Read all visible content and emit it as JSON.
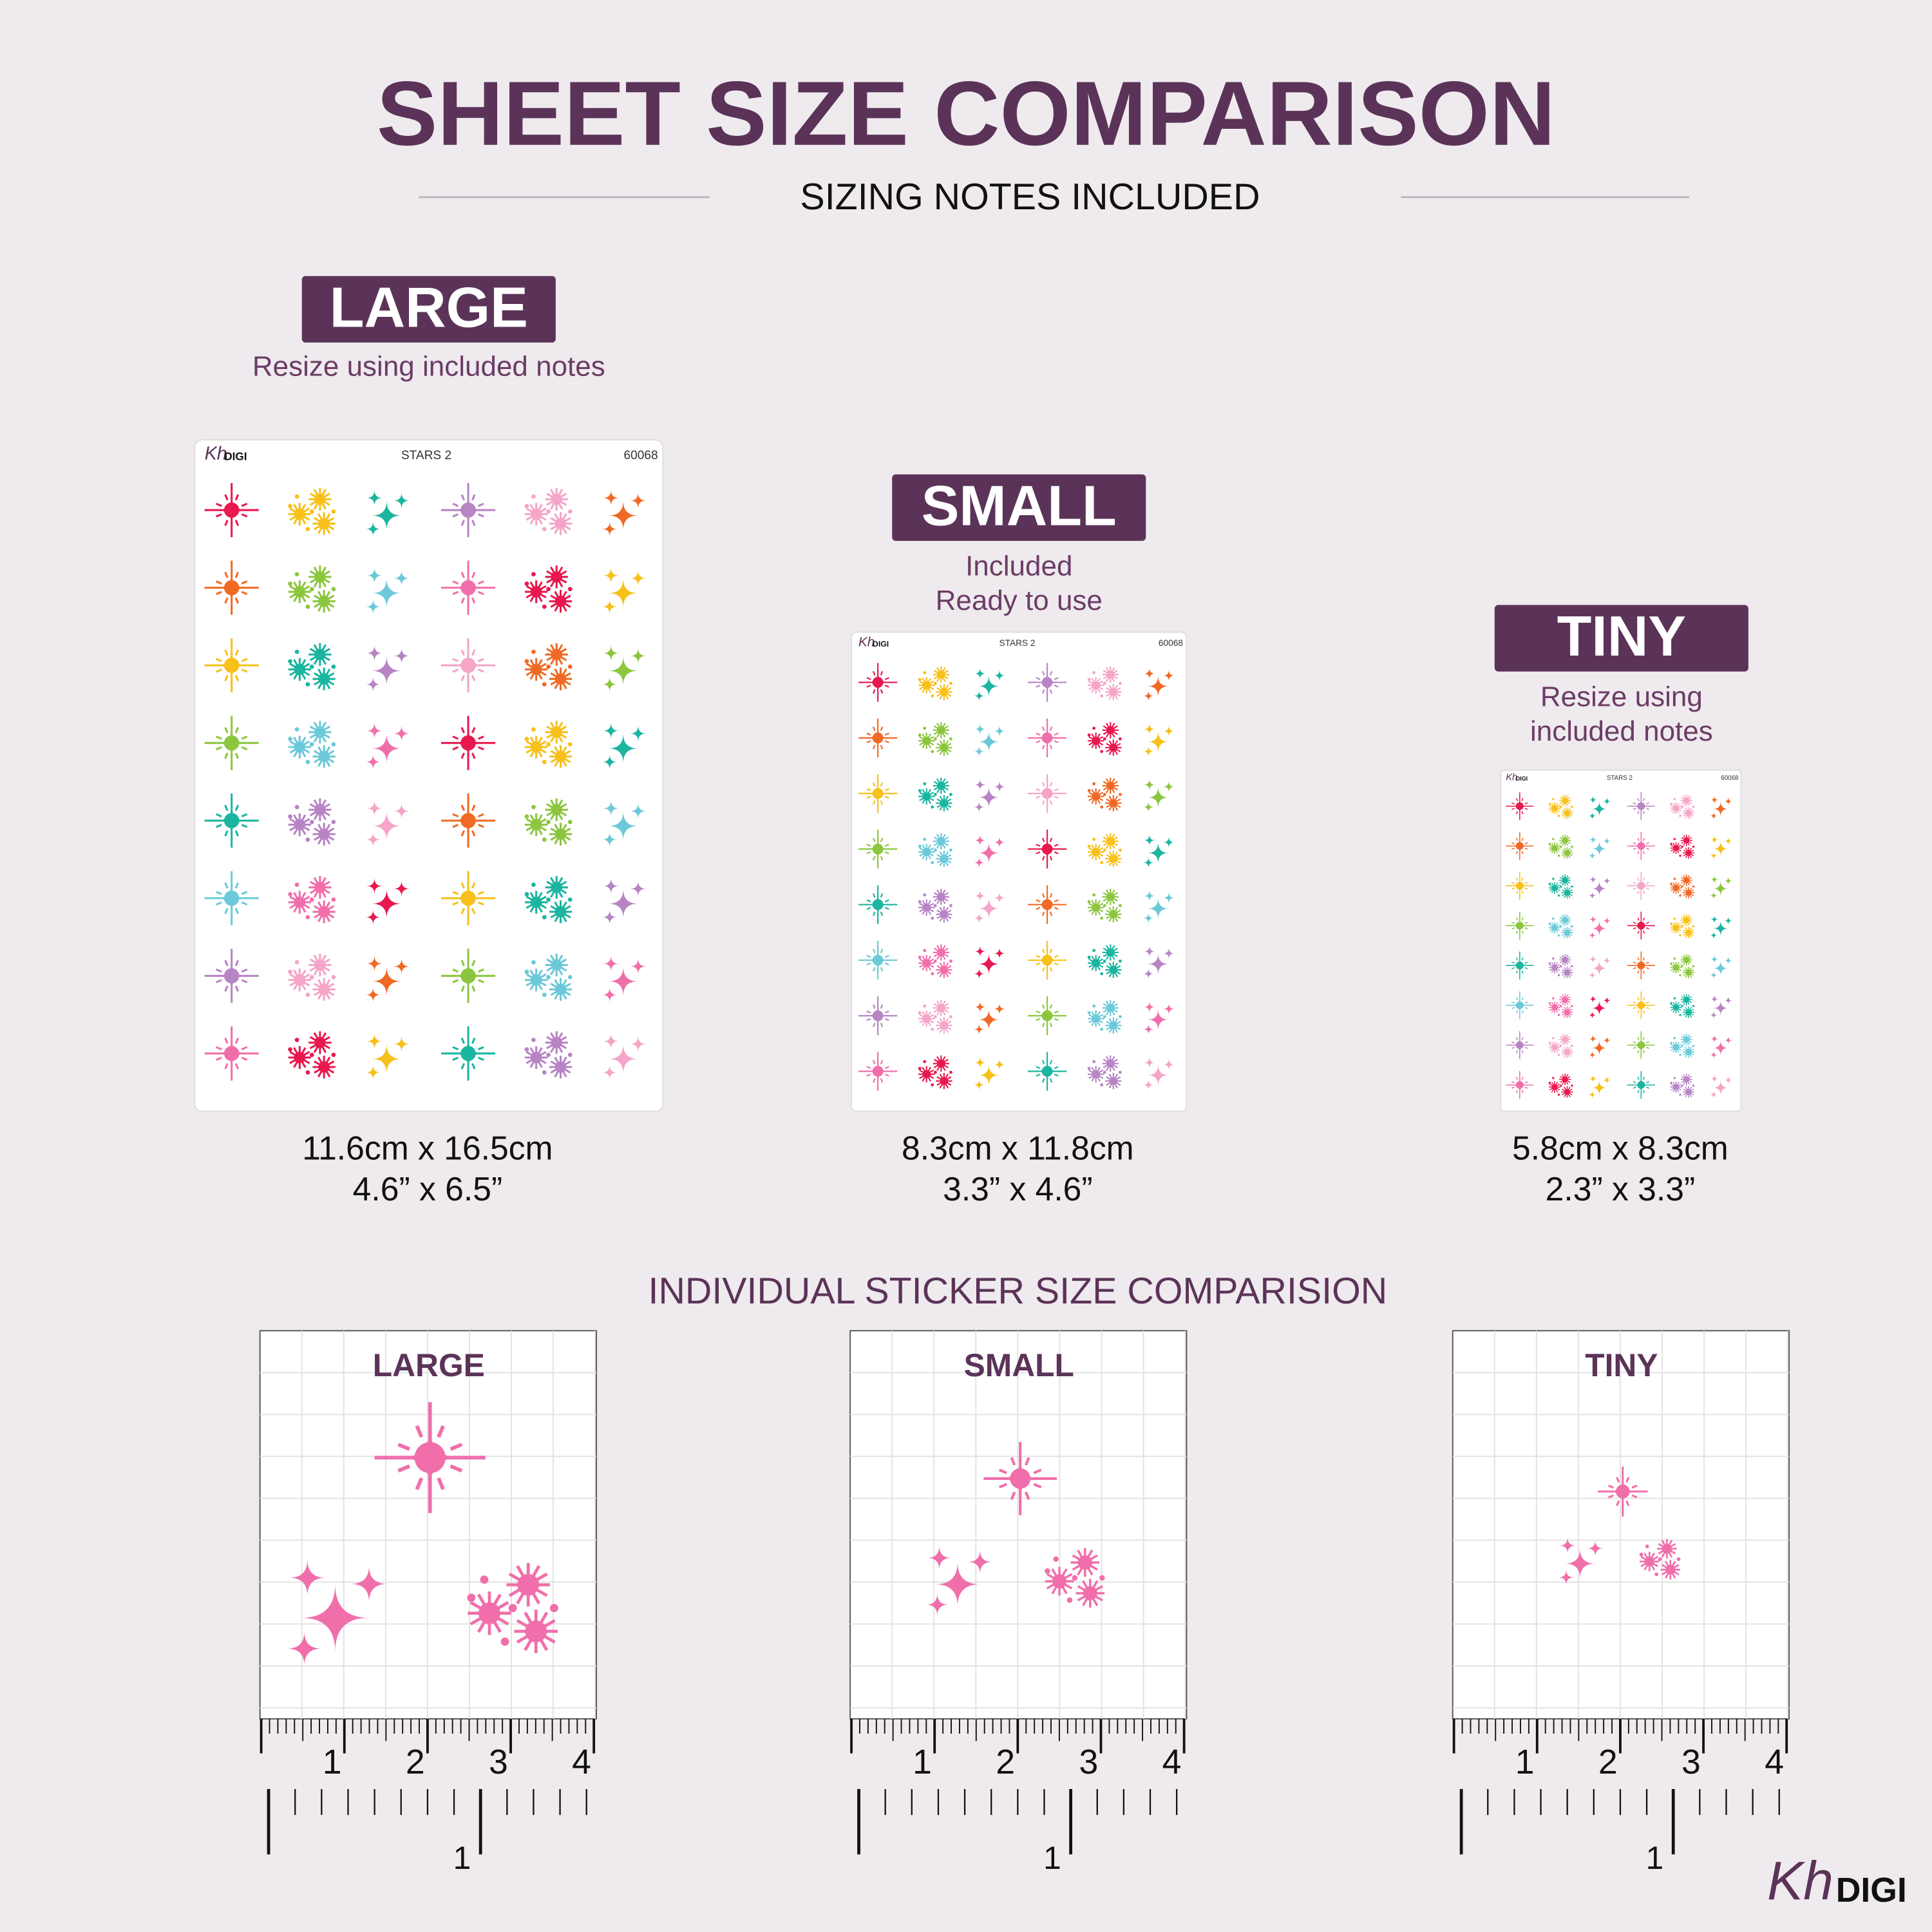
{
  "header": {
    "title": "SHEET SIZE COMPARISON",
    "subtitle": "SIZING NOTES INCLUDED"
  },
  "sheets": [
    {
      "label": "LARGE",
      "note": [
        "Resize using included notes"
      ],
      "size_cm": "11.6cm x 16.5cm",
      "size_in": "4.6” x 6.5”"
    },
    {
      "label": "SMALL",
      "note": [
        "Included",
        "Ready to use"
      ],
      "size_cm": "8.3cm x 11.8cm",
      "size_in": "3.3” x 4.6”"
    },
    {
      "label": "TINY",
      "note": [
        "Resize using",
        "included notes"
      ],
      "size_cm": "5.8cm x 8.3cm",
      "size_in": "2.3” x 3.3”"
    }
  ],
  "sheet_header": {
    "brand_script": "Kh",
    "brand": "DIGI",
    "name": "STARS 2",
    "code": "60068"
  },
  "individual": {
    "title": "INDIVIDUAL STICKER SIZE COMPARISION",
    "panels": [
      "LARGE",
      "SMALL",
      "TINY"
    ],
    "ruler_cm": [
      "1",
      "2",
      "3",
      "4"
    ],
    "ruler_in": [
      "1"
    ]
  },
  "footer": {
    "brand_script": "Kh",
    "brand": "DIGI"
  }
}
